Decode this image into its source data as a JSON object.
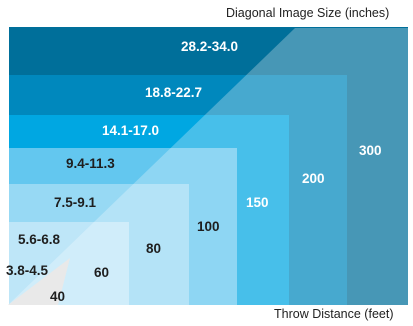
{
  "captions": {
    "diagonal_size": "Diagonal Image Size (inches)",
    "throw_distance": "Throw Distance (feet)"
  },
  "levels": [
    {
      "size": "28.2-34.0",
      "distance": "300",
      "color": "#006f9a"
    },
    {
      "size": "18.8-22.7",
      "distance": "200",
      "color": "#0088bd"
    },
    {
      "size": "14.1-17.0",
      "distance": "150",
      "color": "#00a7e2"
    },
    {
      "size": "9.4-11.3",
      "distance": "100",
      "color": "#63c7ef"
    },
    {
      "size": "7.5-9.1",
      "distance": "80",
      "color": "#97d9f4"
    },
    {
      "size": "5.6-6.8",
      "distance": "60",
      "color": "#bee6f8"
    },
    {
      "size": "3.8-4.5",
      "distance": "40",
      "color": "#f2f2f2"
    }
  ]
}
